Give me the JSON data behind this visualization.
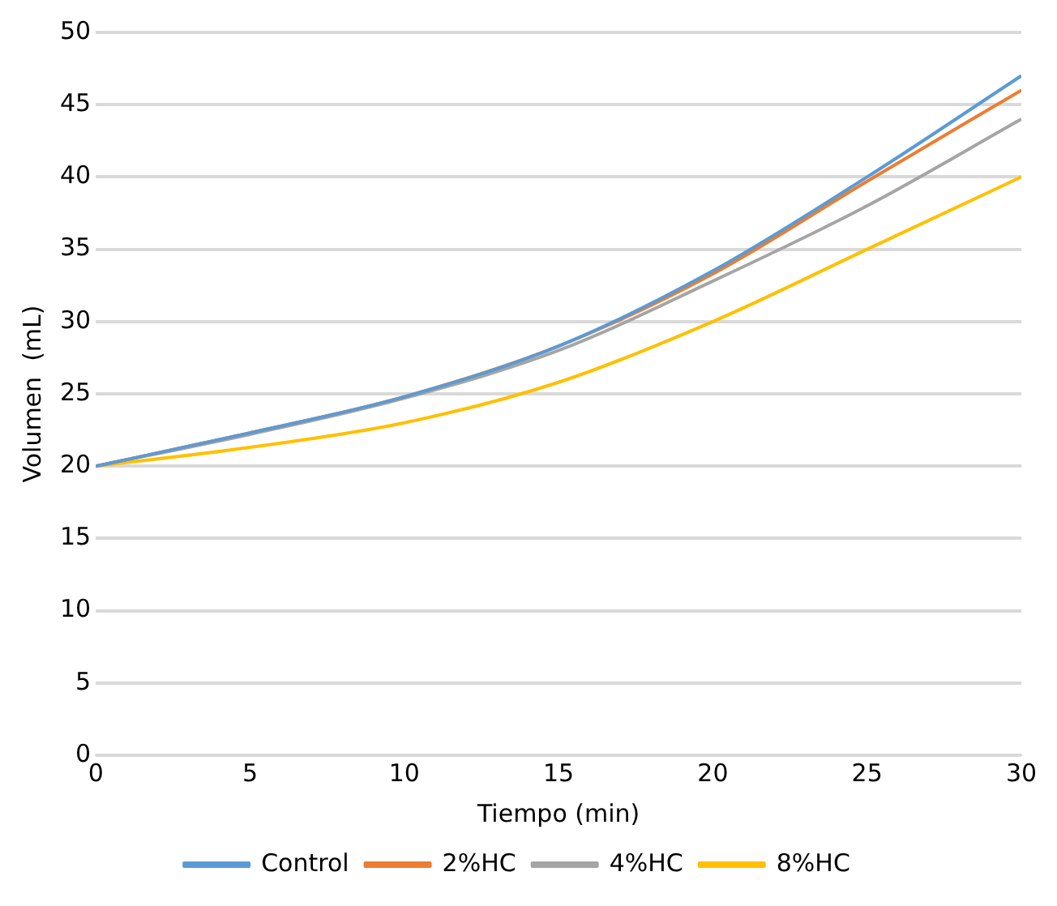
{
  "chart_data": {
    "type": "line",
    "xlabel": "Tiempo (min)",
    "ylabel": "Volumen  (mL)",
    "x": [
      0,
      5,
      10,
      15,
      20,
      25,
      30
    ],
    "series": [
      {
        "name": "Control",
        "color": "#5b9bd5",
        "values": [
          20,
          22.3,
          24.8,
          28.3,
          33.5,
          40,
          47
        ]
      },
      {
        "name": "2%HC",
        "color": "#ed7d31",
        "values": [
          20,
          22.3,
          24.8,
          28.3,
          33.3,
          39.7,
          46
        ]
      },
      {
        "name": "4%HC",
        "color": "#a5a5a5",
        "values": [
          20,
          22.2,
          24.7,
          28,
          32.8,
          38,
          44
        ]
      },
      {
        "name": "8%HC",
        "color": "#ffc000",
        "values": [
          20,
          21.3,
          23,
          25.8,
          30,
          35,
          40
        ]
      }
    ],
    "xlim": [
      0,
      30
    ],
    "xticks": [
      0,
      5,
      10,
      15,
      20,
      25,
      30
    ],
    "ylim": [
      0,
      50
    ],
    "yticks": [
      0,
      5,
      10,
      15,
      20,
      25,
      30,
      35,
      40,
      45,
      50
    ],
    "grid": "y",
    "legend": "bottom",
    "line_style": "solid"
  }
}
